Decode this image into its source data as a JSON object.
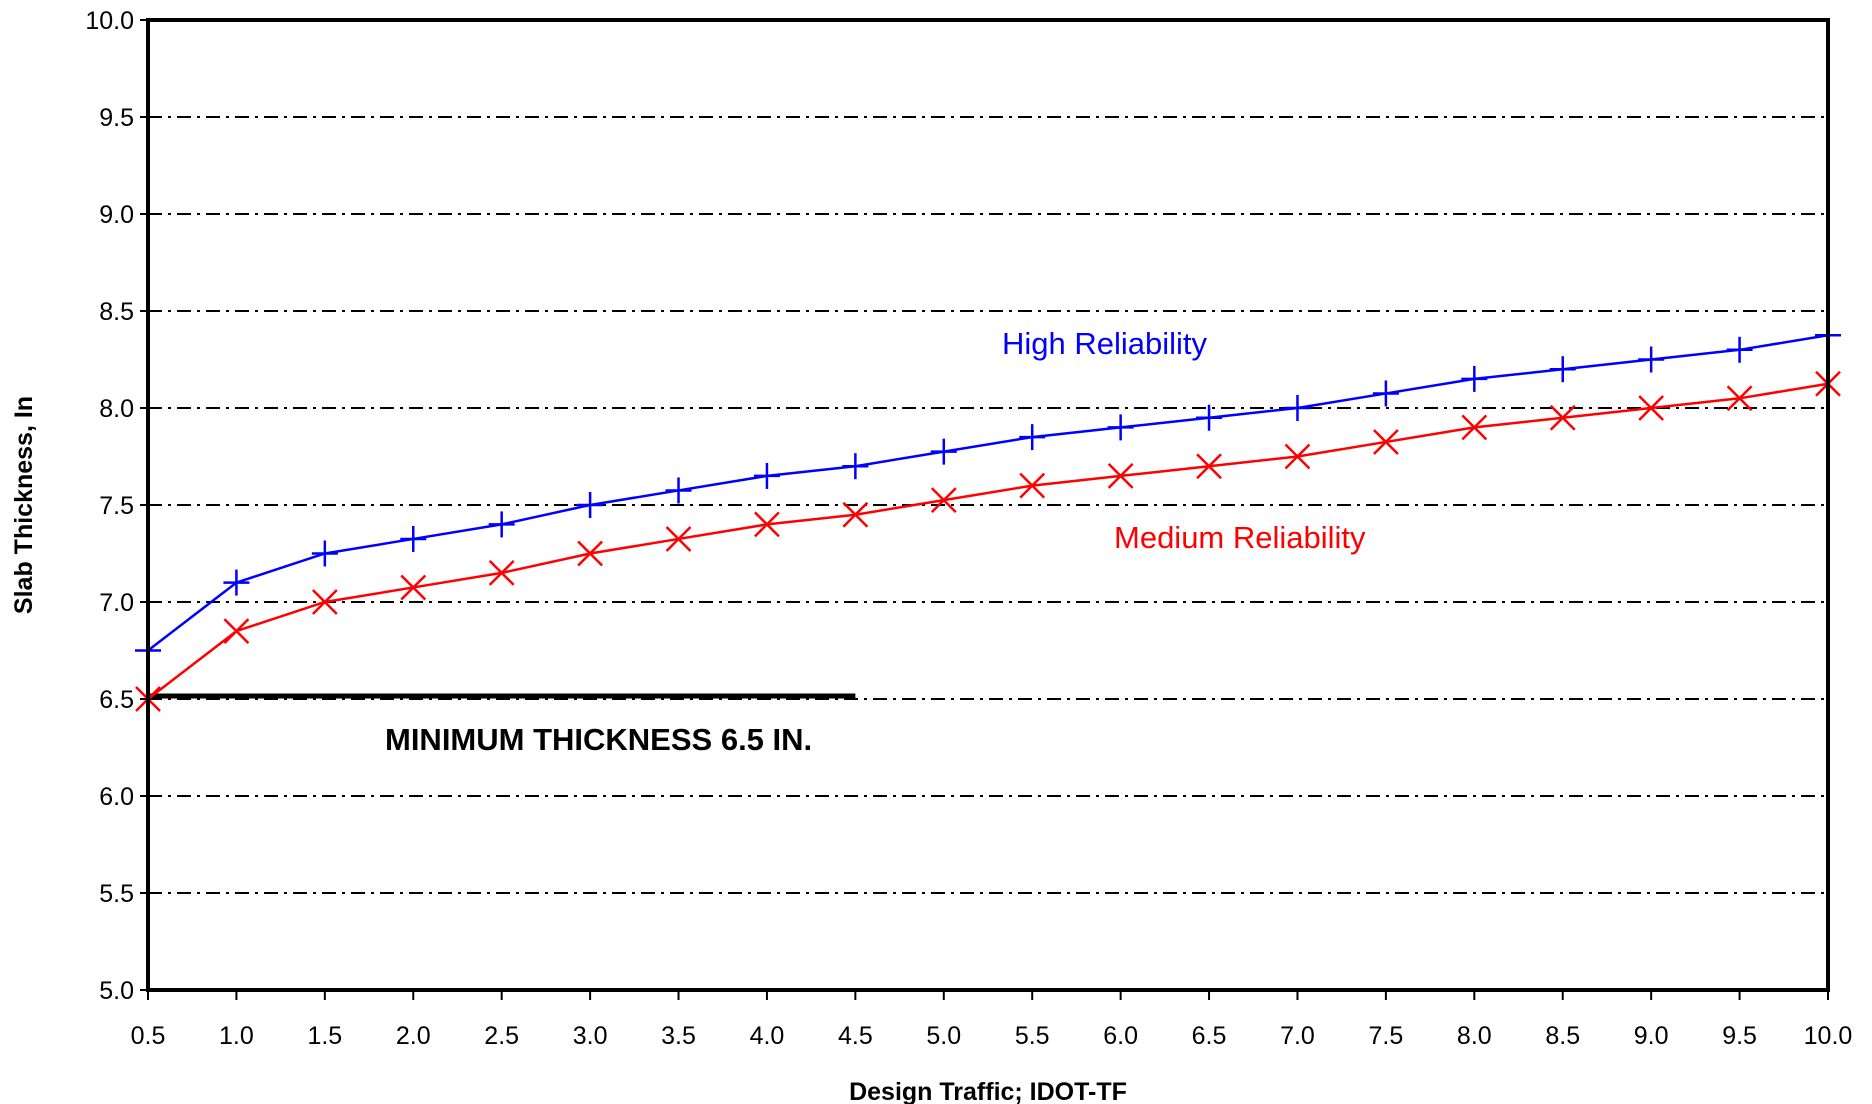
{
  "chart_data": {
    "type": "line",
    "xlabel": "Design Traffic; IDOT-TF",
    "ylabel": "Slab Thickness, In",
    "xlim": [
      0.5,
      10.0
    ],
    "ylim": [
      5.0,
      10.0
    ],
    "x_ticks": [
      "0.5",
      "1.0",
      "1.5",
      "2.0",
      "2.5",
      "3.0",
      "3.5",
      "4.0",
      "4.5",
      "5.0",
      "5.5",
      "6.0",
      "6.5",
      "7.0",
      "7.5",
      "8.0",
      "8.5",
      "9.0",
      "9.5",
      "10.0"
    ],
    "y_ticks": [
      "5.0",
      "5.5",
      "6.0",
      "6.5",
      "7.0",
      "7.5",
      "8.0",
      "8.5",
      "9.0",
      "9.5",
      "10.0"
    ],
    "grid": "horizontal dash-dot",
    "x": [
      0.5,
      1.0,
      1.5,
      2.0,
      2.5,
      3.0,
      3.5,
      4.0,
      4.5,
      5.0,
      5.5,
      6.0,
      6.5,
      7.0,
      7.5,
      8.0,
      8.5,
      9.0,
      9.5,
      10.0
    ],
    "series": [
      {
        "name": "High Reliability",
        "color": "#0000ff",
        "marker": "plus",
        "values": [
          6.75,
          7.1,
          7.25,
          7.325,
          7.4,
          7.5,
          7.575,
          7.65,
          7.7,
          7.775,
          7.85,
          7.9,
          7.95,
          8.0,
          8.075,
          8.15,
          8.2,
          8.25,
          8.3,
          8.375
        ]
      },
      {
        "name": "Medium Reliability",
        "color": "#ff0000",
        "marker": "cross",
        "values": [
          6.5,
          6.85,
          7.0,
          7.075,
          7.15,
          7.25,
          7.325,
          7.4,
          7.45,
          7.525,
          7.6,
          7.65,
          7.7,
          7.75,
          7.825,
          7.9,
          7.95,
          8.0,
          8.05,
          8.125
        ]
      }
    ],
    "reference_line": {
      "label": "MINIMUM THICKNESS 6.5 IN.",
      "y": 6.5,
      "x_range": [
        0.5,
        4.5
      ],
      "color": "#000000"
    }
  }
}
